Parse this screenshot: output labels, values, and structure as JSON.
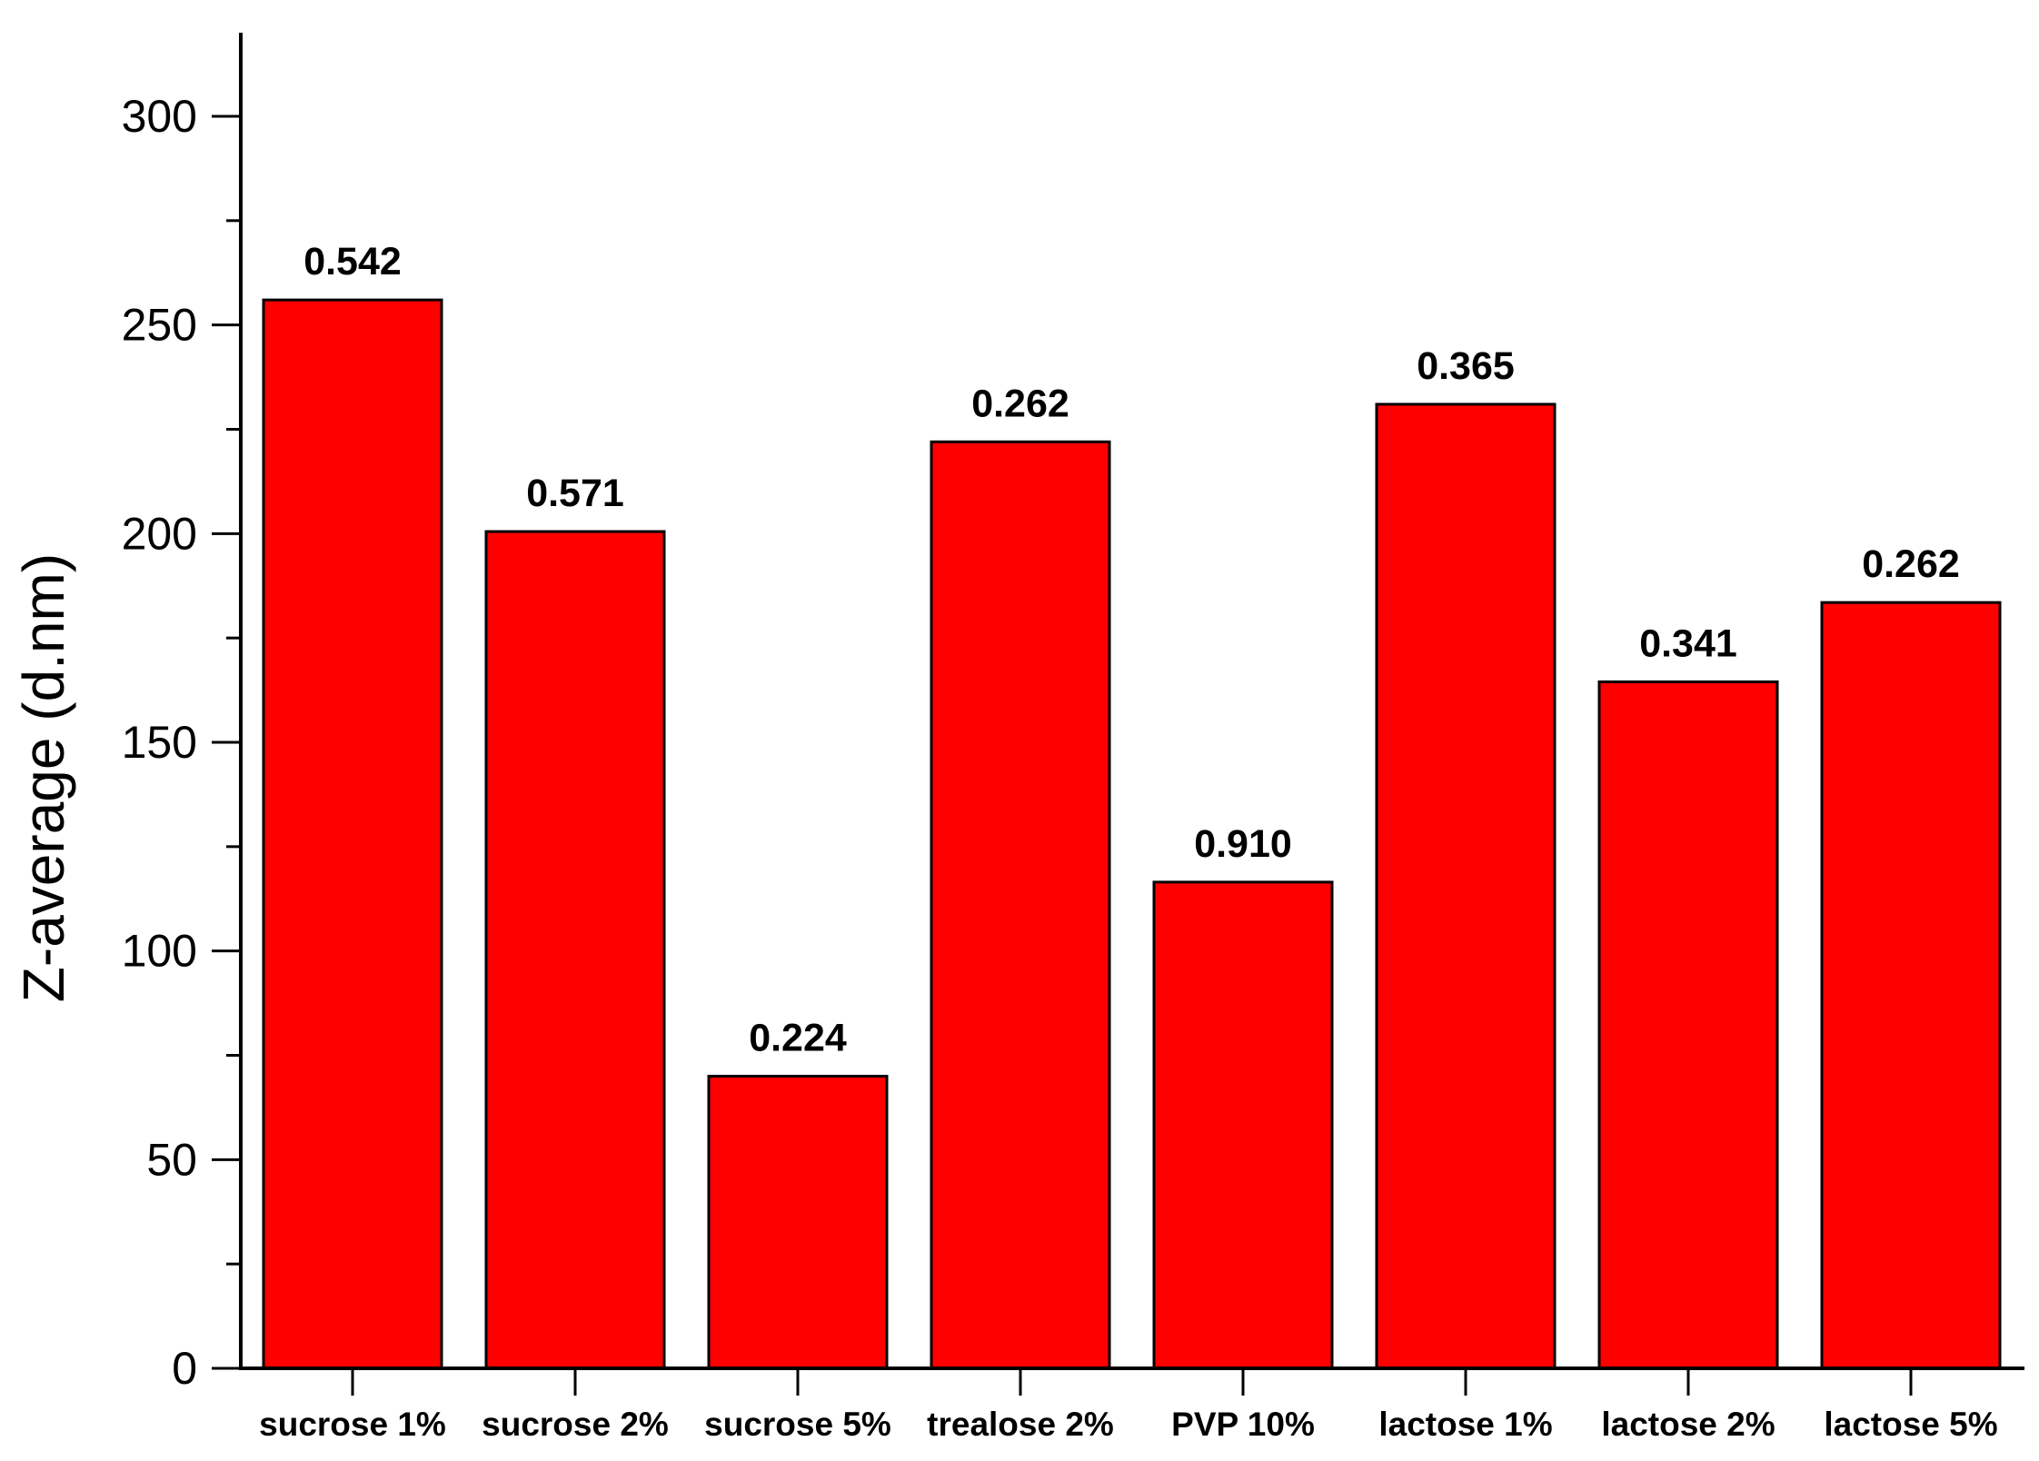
{
  "chart_data": {
    "type": "bar",
    "title": "",
    "xlabel": "",
    "ylabel": "Z-average (d.nm)",
    "ylim": [
      0,
      320
    ],
    "yticks": [
      0,
      50,
      100,
      150,
      200,
      250,
      300
    ],
    "yticks_minor_step": 25,
    "grid": false,
    "legend": "none",
    "bar_color": "#ff0000",
    "bar_edge_color": "#000000",
    "categories": [
      "sucrose 1%",
      "sucrose 2%",
      "sucrose 5%",
      "trealose 2%",
      "PVP 10%",
      "lactose 1%",
      "lactose 2%",
      "lactose 5%"
    ],
    "values": [
      256,
      200.5,
      70,
      222,
      116.5,
      231,
      164.5,
      183.5
    ],
    "bar_labels": [
      "0.542",
      "0.571",
      "0.224",
      "0.262",
      "0.910",
      "0.365",
      "0.341",
      "0.262"
    ]
  }
}
